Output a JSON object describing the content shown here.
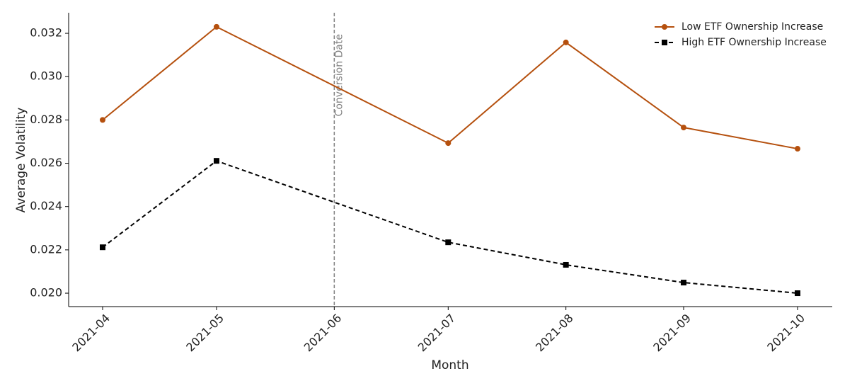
{
  "chart_data": {
    "type": "line",
    "x": [
      "2021-04",
      "2021-05",
      "2021-07",
      "2021-08",
      "2021-09",
      "2021-10"
    ],
    "xticks": [
      "2021-04",
      "2021-05",
      "2021-06",
      "2021-07",
      "2021-08",
      "2021-09",
      "2021-10"
    ],
    "x_label": "Month",
    "y_label": "Average Volatility",
    "ylim": [
      0.01938,
      0.03295
    ],
    "yticks": [
      {
        "value": 0.02,
        "label": "0.020"
      },
      {
        "value": 0.022,
        "label": "0.022"
      },
      {
        "value": 0.024,
        "label": "0.024"
      },
      {
        "value": 0.026,
        "label": "0.026"
      },
      {
        "value": 0.028,
        "label": "0.028"
      },
      {
        "value": 0.03,
        "label": "0.030"
      },
      {
        "value": 0.032,
        "label": "0.032"
      }
    ],
    "series": [
      {
        "name": "Low ETF Ownership Increase",
        "color": "#b5500e",
        "marker": "circle",
        "dash": false,
        "values": [
          0.028,
          0.0323,
          0.02693,
          0.03158,
          0.02765,
          0.02667
        ]
      },
      {
        "name": "High ETF Ownership Increase",
        "color": "#000000",
        "marker": "square",
        "dash": true,
        "values": [
          0.02212,
          0.02611,
          0.02235,
          0.02131,
          0.02049,
          0.02
        ]
      }
    ],
    "annotation": {
      "x": "2021-06",
      "label": "Conversion Date",
      "color": "#808080"
    },
    "legend": "upper right",
    "grid": false
  }
}
